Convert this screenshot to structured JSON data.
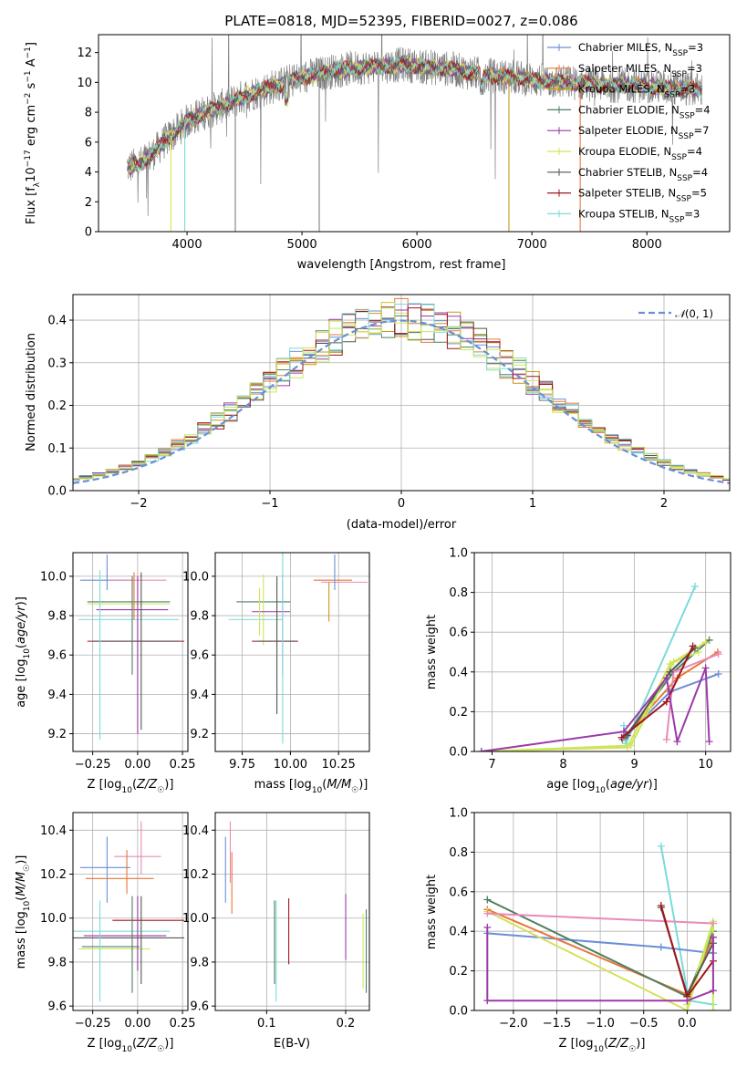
{
  "title": "PLATE=0818, MJD=52395, FIBERID=0027, z=0.086",
  "colors": {
    "chabrier_miles": "#6a8fd6",
    "salpeter_miles": "#e8773a",
    "kroupa_miles": "#c9971c",
    "chabrier_elodie": "#4f7f5f",
    "salpeter_elodie": "#9b3aa8",
    "kroupa_elodie": "#d8e05a",
    "chabrier_stelib": "#555555",
    "salpeter_stelib": "#a0161c",
    "kroupa_stelib": "#7adbd9",
    "data_spectrum": "#808080",
    "pink": "#e88ab8",
    "lime": "#c8e85a",
    "purple": "#9b3aa8"
  },
  "chart_data": [
    {
      "id": "spectrum",
      "type": "line",
      "title": "PLATE=0818, MJD=52395, FIBERID=0027, z=0.086",
      "xlabel": "wavelength [Angstrom, rest frame]",
      "ylabel": "Flux [f_λ10^-17 erg cm^-2 s^-1 A^-1]",
      "xlim": [
        3230,
        8720
      ],
      "ylim": [
        0,
        13.2
      ],
      "xticks": [
        4000,
        5000,
        6000,
        7000,
        8000
      ],
      "yticks": [
        0,
        2,
        4,
        6,
        8,
        10,
        12
      ],
      "grid": false,
      "legend_position": "top-right",
      "legend": [
        {
          "label": "Chabrier MILES, N_SSP=3",
          "color": "#6a8fd6"
        },
        {
          "label": "Salpeter MILES, N_SSP=3",
          "color": "#e8773a"
        },
        {
          "label": "Kroupa MILES, N_SSP=3",
          "color": "#c9971c"
        },
        {
          "label": "Chabrier ELODIE, N_SSP=4",
          "color": "#4f7f5f"
        },
        {
          "label": "Salpeter ELODIE, N_SSP=7",
          "color": "#9b3aa8"
        },
        {
          "label": "Kroupa ELODIE, N_SSP=4",
          "color": "#d8e05a"
        },
        {
          "label": "Chabrier STELIB, N_SSP=4",
          "color": "#555555"
        },
        {
          "label": "Salpeter STELIB, N_SSP=5",
          "color": "#a0161c"
        },
        {
          "label": "Kroupa STELIB, N_SSP=3",
          "color": "#7adbd9"
        }
      ],
      "continuum": {
        "x": [
          3480,
          3600,
          3700,
          3800,
          3900,
          4000,
          4100,
          4200,
          4300,
          4400,
          4500,
          4700,
          4900,
          5100,
          5300,
          5500,
          5700,
          5900,
          6100,
          6300,
          6500,
          6700,
          6900,
          7100,
          7300,
          7500,
          7700,
          7900,
          8100,
          8300,
          8480
        ],
        "y": [
          4.3,
          4.6,
          5.2,
          6.0,
          6.7,
          7.4,
          7.8,
          8.1,
          8.4,
          8.7,
          9.1,
          9.6,
          10.1,
          10.5,
          10.8,
          11.0,
          11.1,
          11.2,
          11.0,
          10.9,
          10.6,
          10.4,
          10.3,
          10.1,
          10.0,
          9.9,
          9.8,
          9.8,
          9.7,
          9.6,
          9.5
        ]
      }
    },
    {
      "id": "residual_hist",
      "type": "line",
      "xlabel": "(data-model)/error",
      "ylabel": "Normed distribution",
      "xlim": [
        -2.5,
        2.5
      ],
      "ylim": [
        0,
        0.46
      ],
      "xticks": [
        -2,
        -1,
        0,
        1,
        2
      ],
      "yticks": [
        0.0,
        0.1,
        0.2,
        0.3,
        0.4
      ],
      "grid": true,
      "legend_position": "top-right",
      "legend": [
        {
          "label": "N(0,1)",
          "color": "#6a8fd6",
          "style": "dashed"
        }
      ],
      "bin_width": 0.1
    },
    {
      "id": "age_vs_Z",
      "type": "scatter",
      "xlabel": "Z [log10(Z/Z☉)]",
      "ylabel": "age [log10(age/yr)]",
      "xlim": [
        -0.36,
        0.28
      ],
      "ylim": [
        9.11,
        10.12
      ],
      "xticks": [
        -0.25,
        0.0,
        0.25
      ],
      "yticks": [
        9.2,
        9.4,
        9.6,
        9.8,
        10.0
      ],
      "grid": true,
      "points": [
        {
          "x": -0.18,
          "y": 9.98,
          "ex": 0.14,
          "ey": 0.0,
          "color": "#6a8fd6"
        },
        {
          "x": -0.17,
          "y": 10.02,
          "ex": 0.0,
          "ey": 0.09,
          "color": "#6a8fd6"
        },
        {
          "x": 0.0,
          "y": 9.98,
          "ex": 0.16,
          "ey": 0.0,
          "color": "#e88ab8"
        },
        {
          "x": -0.05,
          "y": 9.87,
          "ex": 0.23,
          "ey": 0.0,
          "color": "#4f7f5f"
        },
        {
          "x": -0.05,
          "y": 9.86,
          "ex": 0.23,
          "ey": 0.0,
          "color": "#c8e85a"
        },
        {
          "x": -0.03,
          "y": 9.83,
          "ex": 0.2,
          "ey": 0.0,
          "color": "#9b3aa8"
        },
        {
          "x": -0.05,
          "y": 9.78,
          "ex": 0.28,
          "ey": 0.0,
          "color": "#7adbd9"
        },
        {
          "x": -0.01,
          "y": 9.67,
          "ex": 0.27,
          "ey": 0.0,
          "color": "#a0161c"
        },
        {
          "x": -0.01,
          "y": 9.67,
          "ex": 0.24,
          "ey": 0.0,
          "color": "#555555"
        },
        {
          "x": 0.02,
          "y": 9.62,
          "ex": 0.0,
          "ey": 0.4,
          "color": "#555555"
        },
        {
          "x": 0.0,
          "y": 9.6,
          "ex": 0.0,
          "ey": 0.4,
          "color": "#9b3aa8"
        },
        {
          "x": -0.21,
          "y": 9.6,
          "ex": 0.0,
          "ey": 0.43,
          "color": "#7adbd9"
        },
        {
          "x": -0.03,
          "y": 9.75,
          "ex": 0.0,
          "ey": 0.25,
          "color": "#4f7f5f"
        },
        {
          "x": -0.02,
          "y": 9.9,
          "ex": 0.0,
          "ey": 0.12,
          "color": "#e8773a"
        }
      ]
    },
    {
      "id": "age_vs_mass",
      "type": "scatter",
      "xlabel": "mass [log10(M/M☉)]",
      "ylabel": "",
      "xlim": [
        9.61,
        10.41
      ],
      "ylim": [
        9.11,
        10.12
      ],
      "xticks": [
        9.75,
        10.0,
        10.25
      ],
      "yticks": [
        9.2,
        9.4,
        9.6,
        9.8,
        10.0
      ],
      "grid": true,
      "points": [
        {
          "x": 10.28,
          "y": 9.97,
          "ex": 0.12,
          "ey": 0.0,
          "color": "#e88ab8"
        },
        {
          "x": 10.22,
          "y": 9.98,
          "ex": 0.1,
          "ey": 0.0,
          "color": "#e8773a"
        },
        {
          "x": 10.23,
          "y": 10.02,
          "ex": 0.0,
          "ey": 0.09,
          "color": "#6a8fd6"
        },
        {
          "x": 10.2,
          "y": 9.87,
          "ex": 0.0,
          "ey": 0.1,
          "color": "#c9971c"
        },
        {
          "x": 9.86,
          "y": 9.87,
          "ex": 0.14,
          "ey": 0.0,
          "color": "#4f7f5f"
        },
        {
          "x": 9.86,
          "y": 9.83,
          "ex": 0.0,
          "ey": 0.18,
          "color": "#c8e85a"
        },
        {
          "x": 9.9,
          "y": 9.82,
          "ex": 0.1,
          "ey": 0.0,
          "color": "#9b3aa8"
        },
        {
          "x": 9.82,
          "y": 9.78,
          "ex": 0.14,
          "ey": 0.0,
          "color": "#7adbd9"
        },
        {
          "x": 9.92,
          "y": 9.67,
          "ex": 0.12,
          "ey": 0.0,
          "color": "#a0161c"
        },
        {
          "x": 9.93,
          "y": 9.67,
          "ex": 0.1,
          "ey": 0.0,
          "color": "#555555"
        },
        {
          "x": 9.93,
          "y": 9.65,
          "ex": 0.0,
          "ey": 0.35,
          "color": "#555555"
        },
        {
          "x": 9.96,
          "y": 9.75,
          "ex": 0.0,
          "ey": 0.26,
          "color": "#9b3aa8"
        },
        {
          "x": 9.96,
          "y": 9.65,
          "ex": 0.0,
          "ey": 0.5,
          "color": "#7adbd9"
        },
        {
          "x": 9.84,
          "y": 9.82,
          "ex": 0.0,
          "ey": 0.12,
          "color": "#d8e05a"
        }
      ]
    },
    {
      "id": "weight_vs_age",
      "type": "line",
      "xlabel": "age [log10(age/yr)]",
      "ylabel": "mass weight",
      "xlim": [
        6.75,
        10.35
      ],
      "ylim": [
        0,
        1.0
      ],
      "xticks": [
        7,
        8,
        9,
        10
      ],
      "yticks": [
        0.0,
        0.2,
        0.4,
        0.6,
        0.8,
        1.0
      ],
      "grid": true,
      "series": [
        {
          "color": "#7adbd9",
          "x": [
            8.85,
            8.88,
            9.85
          ],
          "y": [
            0.13,
            0.04,
            0.83
          ]
        },
        {
          "color": "#6a8fd6",
          "x": [
            8.83,
            9.5,
            10.18
          ],
          "y": [
            0.06,
            0.3,
            0.39
          ]
        },
        {
          "color": "#e8773a",
          "x": [
            8.85,
            9.6,
            10.17
          ],
          "y": [
            0.07,
            0.37,
            0.5
          ]
        },
        {
          "color": "#4f7f5f",
          "x": [
            8.88,
            9.55,
            10.05
          ],
          "y": [
            0.08,
            0.4,
            0.56
          ]
        },
        {
          "color": "#d8e05a",
          "x": [
            6.85,
            8.9,
            9.5,
            10.0
          ],
          "y": [
            0.0,
            0.02,
            0.44,
            0.55
          ]
        },
        {
          "color": "#c8e85a",
          "x": [
            6.85,
            8.95,
            9.55,
            9.9
          ],
          "y": [
            0.0,
            0.03,
            0.45,
            0.5
          ]
        },
        {
          "color": "#e88ab8",
          "x": [
            9.45,
            9.55,
            10.18
          ],
          "y": [
            0.06,
            0.4,
            0.49
          ]
        },
        {
          "color": "#555555",
          "x": [
            8.9,
            9.5,
            9.85
          ],
          "y": [
            0.08,
            0.4,
            0.52
          ]
        },
        {
          "color": "#a0161c",
          "x": [
            8.82,
            9.45,
            9.82
          ],
          "y": [
            0.07,
            0.25,
            0.53
          ]
        },
        {
          "color": "#9b3aa8",
          "x": [
            6.85,
            8.85,
            9.45,
            9.6,
            10.0,
            10.05
          ],
          "y": [
            0.0,
            0.1,
            0.37,
            0.05,
            0.42,
            0.05
          ]
        }
      ]
    },
    {
      "id": "mass_vs_Z",
      "type": "scatter",
      "xlabel": "Z [log10(Z/Z☉)]",
      "ylabel": "mass [log10(M/M☉)]",
      "xlim": [
        -0.36,
        0.28
      ],
      "ylim": [
        9.58,
        10.48
      ],
      "xticks": [
        -0.25,
        0.0,
        0.25
      ],
      "yticks": [
        9.6,
        9.8,
        10.0,
        10.2,
        10.4
      ],
      "grid": true,
      "points": [
        {
          "x": 0.0,
          "y": 10.28,
          "ex": 0.13,
          "ey": 0.0,
          "color": "#e88ab8"
        },
        {
          "x": 0.02,
          "y": 10.32,
          "ex": 0.0,
          "ey": 0.12,
          "color": "#e88ab8"
        },
        {
          "x": -0.18,
          "y": 10.23,
          "ex": 0.14,
          "ey": 0.0,
          "color": "#6a8fd6"
        },
        {
          "x": -0.17,
          "y": 10.22,
          "ex": 0.0,
          "ey": 0.15,
          "color": "#6a8fd6"
        },
        {
          "x": -0.1,
          "y": 10.18,
          "ex": 0.19,
          "ey": 0.0,
          "color": "#e8773a"
        },
        {
          "x": -0.06,
          "y": 10.21,
          "ex": 0.0,
          "ey": 0.1,
          "color": "#e8773a"
        },
        {
          "x": 0.06,
          "y": 9.99,
          "ex": 0.2,
          "ey": 0.0,
          "color": "#a0161c"
        },
        {
          "x": -0.09,
          "y": 9.94,
          "ex": 0.27,
          "ey": 0.0,
          "color": "#7adbd9"
        },
        {
          "x": -0.07,
          "y": 9.92,
          "ex": 0.23,
          "ey": 0.0,
          "color": "#9b3aa8"
        },
        {
          "x": -0.06,
          "y": 9.91,
          "ex": 0.32,
          "ey": 0.0,
          "color": "#555555"
        },
        {
          "x": -0.15,
          "y": 9.87,
          "ex": 0.16,
          "ey": 0.0,
          "color": "#4f7f5f"
        },
        {
          "x": -0.13,
          "y": 9.86,
          "ex": 0.2,
          "ey": 0.0,
          "color": "#c8e85a"
        },
        {
          "x": -0.21,
          "y": 9.85,
          "ex": 0.0,
          "ey": 0.23,
          "color": "#7adbd9"
        },
        {
          "x": -0.03,
          "y": 9.88,
          "ex": 0.0,
          "ey": 0.22,
          "color": "#4f7f5f"
        },
        {
          "x": 0.0,
          "y": 9.93,
          "ex": 0.0,
          "ey": 0.17,
          "color": "#9b3aa8"
        },
        {
          "x": 0.02,
          "y": 9.9,
          "ex": 0.0,
          "ey": 0.2,
          "color": "#555555"
        }
      ]
    },
    {
      "id": "mass_vs_EBV",
      "type": "scatter",
      "xlabel": "E(B-V)",
      "ylabel": "",
      "xlim": [
        0.035,
        0.23
      ],
      "ylim": [
        9.58,
        10.48
      ],
      "xticks": [
        0.1,
        0.2
      ],
      "yticks": [
        9.6,
        9.8,
        10.0,
        10.2,
        10.4
      ],
      "grid": true,
      "points": [
        {
          "x": 0.048,
          "y": 10.22,
          "ex": 0.0,
          "ey": 0.15,
          "color": "#6a8fd6"
        },
        {
          "x": 0.054,
          "y": 10.3,
          "ex": 0.0,
          "ey": 0.14,
          "color": "#e88ab8"
        },
        {
          "x": 0.056,
          "y": 10.16,
          "ex": 0.0,
          "ey": 0.14,
          "color": "#e8773a"
        },
        {
          "x": 0.11,
          "y": 9.89,
          "ex": 0.0,
          "ey": 0.19,
          "color": "#4f7f5f"
        },
        {
          "x": 0.112,
          "y": 9.85,
          "ex": 0.0,
          "ey": 0.23,
          "color": "#7adbd9"
        },
        {
          "x": 0.128,
          "y": 9.94,
          "ex": 0.0,
          "ey": 0.15,
          "color": "#a0161c"
        },
        {
          "x": 0.2,
          "y": 9.96,
          "ex": 0.0,
          "ey": 0.15,
          "color": "#9b3aa8"
        },
        {
          "x": 0.222,
          "y": 9.85,
          "ex": 0.0,
          "ey": 0.17,
          "color": "#c8e85a"
        },
        {
          "x": 0.226,
          "y": 9.85,
          "ex": 0.0,
          "ey": 0.19,
          "color": "#4f7f5f"
        }
      ]
    },
    {
      "id": "weight_vs_Z",
      "type": "line",
      "xlabel": "Z [log10(Z/Z☉)]",
      "ylabel": "mass weight",
      "xlim": [
        -2.45,
        0.5
      ],
      "ylim": [
        0,
        1.0
      ],
      "xticks": [
        -2.0,
        -1.5,
        -1.0,
        -0.5,
        0.0
      ],
      "yticks": [
        0.0,
        0.2,
        0.4,
        0.6,
        0.8,
        1.0
      ],
      "grid": true,
      "series": [
        {
          "color": "#7adbd9",
          "x": [
            -0.3,
            0.02,
            0.3
          ],
          "y": [
            0.83,
            0.05,
            0.03
          ]
        },
        {
          "color": "#6a8fd6",
          "x": [
            -2.3,
            -0.3,
            0.3
          ],
          "y": [
            0.39,
            0.32,
            0.29
          ]
        },
        {
          "color": "#e8773a",
          "x": [
            -2.3,
            0.0,
            0.3
          ],
          "y": [
            0.51,
            0.08,
            0.37
          ]
        },
        {
          "color": "#4f7f5f",
          "x": [
            -2.3,
            0.0,
            0.3
          ],
          "y": [
            0.56,
            0.07,
            0.4
          ]
        },
        {
          "color": "#d8e05a",
          "x": [
            -2.3,
            0.0,
            0.3
          ],
          "y": [
            0.5,
            0.0,
            0.44
          ]
        },
        {
          "color": "#c8e85a",
          "x": [
            0.0,
            0.3,
            0.3
          ],
          "y": [
            0.03,
            0.45,
            0.0
          ]
        },
        {
          "color": "#e88ab8",
          "x": [
            -2.3,
            0.3
          ],
          "y": [
            0.49,
            0.44
          ]
        },
        {
          "color": "#555555",
          "x": [
            -0.3,
            0.0,
            0.3
          ],
          "y": [
            0.52,
            0.08,
            0.34
          ]
        },
        {
          "color": "#a0161c",
          "x": [
            -0.3,
            0.0,
            0.3
          ],
          "y": [
            0.53,
            0.07,
            0.25
          ]
        },
        {
          "color": "#9b3aa8",
          "x": [
            -2.3,
            -2.3,
            0.0,
            0.3,
            0.3
          ],
          "y": [
            0.42,
            0.05,
            0.05,
            0.1,
            0.37
          ]
        }
      ]
    }
  ]
}
